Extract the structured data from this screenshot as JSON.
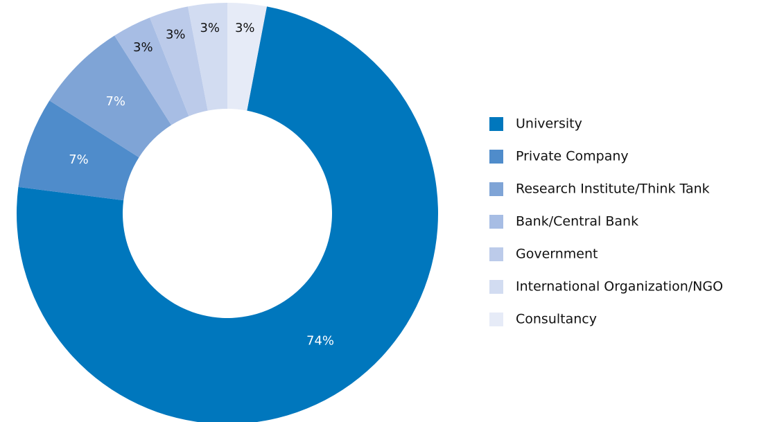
{
  "chart_data": {
    "type": "donut",
    "categories": [
      "University",
      "Private Company",
      "Research Institute/Think Tank",
      "Bank/Central Bank",
      "Government",
      "International Organization/NGO",
      "Consultancy"
    ],
    "values": [
      74,
      7,
      7,
      3,
      3,
      3,
      3
    ],
    "value_labels": [
      "74%",
      "7%",
      "7%",
      "3%",
      "3%",
      "3%",
      "3%"
    ],
    "colors": [
      "#0077bd",
      "#4f8ccb",
      "#7fa4d6",
      "#a7bde4",
      "#bccbea",
      "#d2dcf1",
      "#e6ebf7"
    ],
    "legend": "right"
  }
}
